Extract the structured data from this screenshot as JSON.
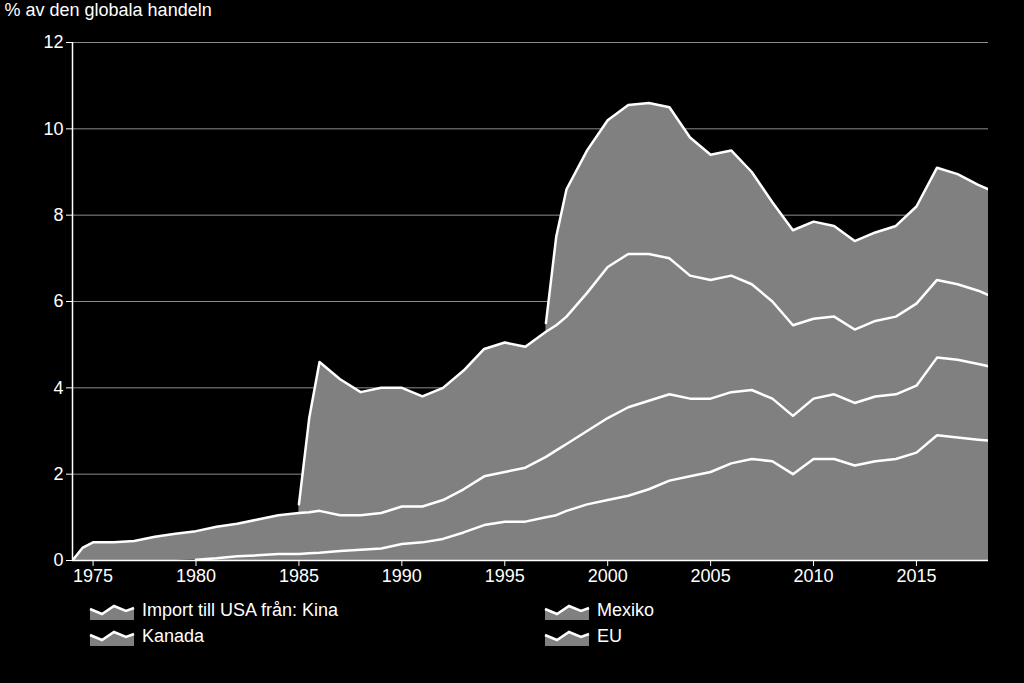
{
  "chart_data": {
    "type": "area",
    "stacked": true,
    "y_label": "% av den globala handeln",
    "x": [
      1974,
      1974.5,
      1975,
      1976,
      1977,
      1978,
      1979,
      1980,
      1981,
      1982,
      1983,
      1984,
      1985,
      1985.5,
      1986,
      1987,
      1988,
      1989,
      1990,
      1991,
      1992,
      1993,
      1994,
      1995,
      1996,
      1997,
      1997.5,
      1998,
      1999,
      2000,
      2001,
      2002,
      2003,
      2004,
      2005,
      2006,
      2007,
      2008,
      2009,
      2010,
      2011,
      2012,
      2013,
      2014,
      2015,
      2016,
      2017,
      2018,
      2018.5
    ],
    "series": [
      {
        "name": "Import till USA från: Kina",
        "color": "#808080",
        "values": [
          null,
          null,
          null,
          null,
          null,
          null,
          null,
          0.02,
          0.05,
          0.1,
          0.12,
          0.15,
          0.15,
          0.17,
          0.18,
          0.22,
          0.25,
          0.28,
          0.38,
          0.42,
          0.5,
          0.65,
          0.82,
          0.9,
          0.9,
          1.0,
          1.05,
          1.15,
          1.3,
          1.4,
          1.5,
          1.65,
          1.85,
          1.95,
          2.05,
          2.25,
          2.35,
          2.3,
          2.0,
          2.35,
          2.35,
          2.2,
          2.3,
          2.35,
          2.5,
          2.9,
          2.85,
          2.8,
          2.78
        ]
      },
      {
        "name": "Mexiko",
        "color": "#808080",
        "values": [
          0,
          0.3,
          0.42,
          0.42,
          0.45,
          0.55,
          0.62,
          0.66,
          0.73,
          0.75,
          0.83,
          0.9,
          0.95,
          0.95,
          0.97,
          0.83,
          0.8,
          0.82,
          0.87,
          0.83,
          0.9,
          1.0,
          1.13,
          1.15,
          1.25,
          1.4,
          1.5,
          1.55,
          1.7,
          1.9,
          2.05,
          2.05,
          2.0,
          1.8,
          1.7,
          1.65,
          1.6,
          1.45,
          1.35,
          1.4,
          1.5,
          1.45,
          1.5,
          1.5,
          1.55,
          1.8,
          1.8,
          1.75,
          1.72
        ]
      },
      {
        "name": "Kanada",
        "color": "#808080",
        "values": [
          null,
          null,
          null,
          null,
          null,
          null,
          null,
          null,
          null,
          null,
          null,
          null,
          0.2,
          2.18,
          3.45,
          3.15,
          2.85,
          2.9,
          2.75,
          2.55,
          2.6,
          2.75,
          2.95,
          3.0,
          2.8,
          2.9,
          2.9,
          2.95,
          3.2,
          3.5,
          3.55,
          3.4,
          3.15,
          2.85,
          2.75,
          2.7,
          2.45,
          2.25,
          2.1,
          1.85,
          1.8,
          1.7,
          1.75,
          1.8,
          1.9,
          1.8,
          1.75,
          1.7,
          1.65
        ]
      },
      {
        "name": "EU",
        "color": "#808080",
        "values": [
          null,
          null,
          null,
          null,
          null,
          null,
          null,
          null,
          null,
          null,
          null,
          null,
          null,
          null,
          null,
          null,
          null,
          null,
          null,
          null,
          null,
          null,
          null,
          null,
          null,
          0.2,
          2.05,
          2.95,
          3.3,
          3.4,
          3.45,
          3.5,
          3.5,
          3.2,
          2.9,
          2.9,
          2.6,
          2.3,
          2.2,
          2.25,
          2.1,
          2.05,
          2.05,
          2.1,
          2.25,
          2.6,
          2.55,
          2.45,
          2.45
        ]
      }
    ],
    "xlim": [
      1974,
      2018.5
    ],
    "xticks": [
      1975,
      1980,
      1985,
      1990,
      1995,
      2000,
      2005,
      2010,
      2015
    ],
    "ylim": [
      0,
      12
    ],
    "yticks": [
      0,
      2,
      4,
      6,
      8,
      10,
      12
    ],
    "grid": true,
    "legend": "bottom"
  }
}
